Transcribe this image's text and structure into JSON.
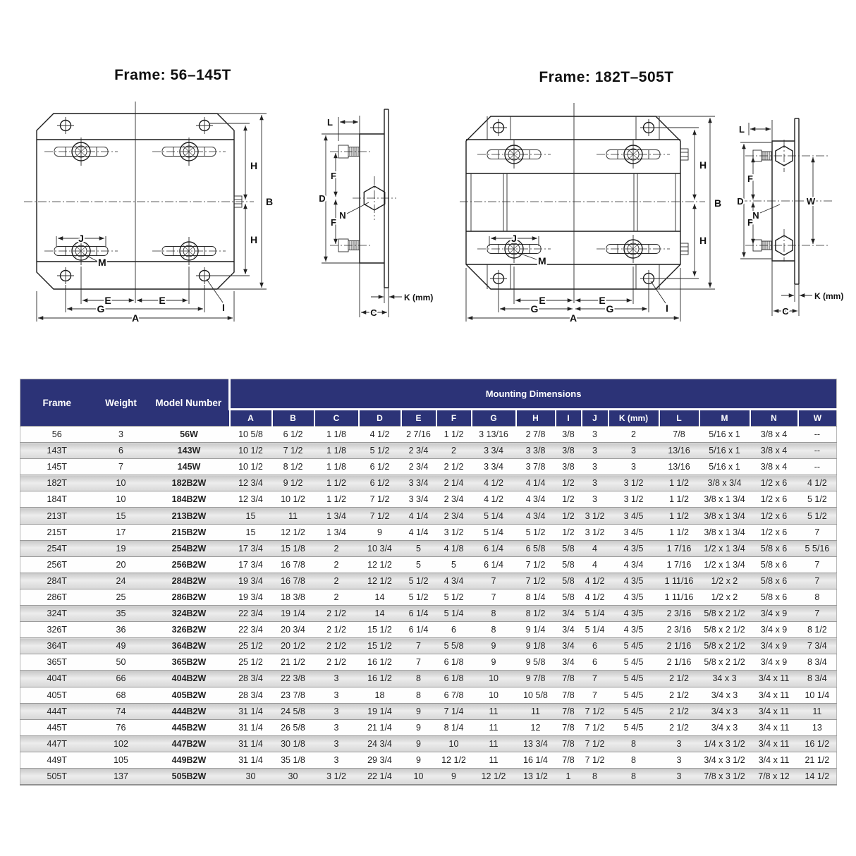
{
  "left_diagram": {
    "title": "Frame: 56–145T",
    "labels": {
      "h_top": "H",
      "b": "B",
      "h_bottom": "H",
      "j": "J",
      "m": "M",
      "e_left": "E",
      "e_right": "E",
      "g": "G",
      "a": "A",
      "i": "I"
    }
  },
  "left_side": {
    "labels": {
      "l": "L",
      "f_top": "F",
      "d": "D",
      "n": "N",
      "f_bottom": "F",
      "k": "K (mm)",
      "c": "C"
    }
  },
  "right_diagram": {
    "title": "Frame: 182T–505T",
    "labels": {
      "h_top": "H",
      "b": "B",
      "h_bottom": "H",
      "j": "J",
      "m": "M",
      "e_left": "E",
      "e_right": "E",
      "g_left": "G",
      "g_right": "G",
      "a": "A",
      "i": "I"
    }
  },
  "right_side": {
    "labels": {
      "l": "L",
      "f_top": "F",
      "d": "D",
      "n": "N",
      "f_bottom": "F",
      "w": "W",
      "k": "K (mm)",
      "c": "C"
    }
  },
  "table": {
    "group_header": "Mounting Dimensions",
    "fixed_headers": [
      "Frame",
      "Weight",
      "Model Number"
    ],
    "dim_headers": [
      "A",
      "B",
      "C",
      "D",
      "E",
      "F",
      "G",
      "H",
      "I",
      "J",
      "K (mm)",
      "L",
      "M",
      "N",
      "W"
    ],
    "rows": [
      [
        "56",
        "3",
        "56W",
        "10 5/8",
        "6 1/2",
        "1 1/8",
        "4 1/2",
        "2 7/16",
        "1 1/2",
        "3 13/16",
        "2 7/8",
        "3/8",
        "3",
        "2",
        "7/8",
        "5/16 x 1",
        "3/8 x 4",
        "--"
      ],
      [
        "143T",
        "6",
        "143W",
        "10 1/2",
        "7 1/2",
        "1 1/8",
        "5 1/2",
        "2 3/4",
        "2",
        "3 3/4",
        "3 3/8",
        "3/8",
        "3",
        "3",
        "13/16",
        "5/16 x 1",
        "3/8 x 4",
        "--"
      ],
      [
        "145T",
        "7",
        "145W",
        "10 1/2",
        "8 1/2",
        "1 1/8",
        "6 1/2",
        "2 3/4",
        "2 1/2",
        "3 3/4",
        "3 7/8",
        "3/8",
        "3",
        "3",
        "13/16",
        "5/16 x 1",
        "3/8 x 4",
        "--"
      ],
      [
        "182T",
        "10",
        "182B2W",
        "12 3/4",
        "9 1/2",
        "1 1/2",
        "6 1/2",
        "3 3/4",
        "2 1/4",
        "4 1/2",
        "4 1/4",
        "1/2",
        "3",
        "3 1/2",
        "1 1/2",
        "3/8 x 3/4",
        "1/2 x 6",
        "4 1/2"
      ],
      [
        "184T",
        "10",
        "184B2W",
        "12 3/4",
        "10 1/2",
        "1 1/2",
        "7 1/2",
        "3 3/4",
        "2 3/4",
        "4 1/2",
        "4 3/4",
        "1/2",
        "3",
        "3 1/2",
        "1 1/2",
        "3/8 x 1 3/4",
        "1/2 x 6",
        "5 1/2"
      ],
      [
        "213T",
        "15",
        "213B2W",
        "15",
        "11",
        "1 3/4",
        "7 1/2",
        "4 1/4",
        "2 3/4",
        "5 1/4",
        "4 3/4",
        "1/2",
        "3 1/2",
        "3 4/5",
        "1 1/2",
        "3/8 x 1 3/4",
        "1/2 x 6",
        "5 1/2"
      ],
      [
        "215T",
        "17",
        "215B2W",
        "15",
        "12 1/2",
        "1 3/4",
        "9",
        "4 1/4",
        "3 1/2",
        "5 1/4",
        "5 1/2",
        "1/2",
        "3 1/2",
        "3 4/5",
        "1 1/2",
        "3/8 x 1 3/4",
        "1/2 x 6",
        "7"
      ],
      [
        "254T",
        "19",
        "254B2W",
        "17 3/4",
        "15 1/8",
        "2",
        "10 3/4",
        "5",
        "4 1/8",
        "6 1/4",
        "6 5/8",
        "5/8",
        "4",
        "4 3/5",
        "1 7/16",
        "1/2 x 1 3/4",
        "5/8 x 6",
        "5 5/16"
      ],
      [
        "256T",
        "20",
        "256B2W",
        "17 3/4",
        "16 7/8",
        "2",
        "12 1/2",
        "5",
        "5",
        "6 1/4",
        "7 1/2",
        "5/8",
        "4",
        "4 3/4",
        "1 7/16",
        "1/2 x 1 3/4",
        "5/8 x 6",
        "7"
      ],
      [
        "284T",
        "24",
        "284B2W",
        "19 3/4",
        "16 7/8",
        "2",
        "12 1/2",
        "5 1/2",
        "4 3/4",
        "7",
        "7 1/2",
        "5/8",
        "4 1/2",
        "4 3/5",
        "1 11/16",
        "1/2 x 2",
        "5/8 x 6",
        "7"
      ],
      [
        "286T",
        "25",
        "286B2W",
        "19 3/4",
        "18 3/8",
        "2",
        "14",
        "5 1/2",
        "5 1/2",
        "7",
        "8 1/4",
        "5/8",
        "4 1/2",
        "4 3/5",
        "1 11/16",
        "1/2 x 2",
        "5/8 x 6",
        "8"
      ],
      [
        "324T",
        "35",
        "324B2W",
        "22 3/4",
        "19 1/4",
        "2 1/2",
        "14",
        "6 1/4",
        "5 1/4",
        "8",
        "8 1/2",
        "3/4",
        "5 1/4",
        "4 3/5",
        "2 3/16",
        "5/8 x 2 1/2",
        "3/4 x 9",
        "7"
      ],
      [
        "326T",
        "36",
        "326B2W",
        "22 3/4",
        "20 3/4",
        "2 1/2",
        "15 1/2",
        "6 1/4",
        "6",
        "8",
        "9 1/4",
        "3/4",
        "5 1/4",
        "4 3/5",
        "2 3/16",
        "5/8 x 2 1/2",
        "3/4 x 9",
        "8 1/2"
      ],
      [
        "364T",
        "49",
        "364B2W",
        "25 1/2",
        "20 1/2",
        "2 1/2",
        "15 1/2",
        "7",
        "5 5/8",
        "9",
        "9 1/8",
        "3/4",
        "6",
        "5 4/5",
        "2 1/16",
        "5/8 x 2 1/2",
        "3/4 x 9",
        "7 3/4"
      ],
      [
        "365T",
        "50",
        "365B2W",
        "25 1/2",
        "21 1/2",
        "2 1/2",
        "16 1/2",
        "7",
        "6 1/8",
        "9",
        "9 5/8",
        "3/4",
        "6",
        "5 4/5",
        "2 1/16",
        "5/8 x 2 1/2",
        "3/4 x 9",
        "8 3/4"
      ],
      [
        "404T",
        "66",
        "404B2W",
        "28 3/4",
        "22 3/8",
        "3",
        "16 1/2",
        "8",
        "6 1/8",
        "10",
        "9 7/8",
        "7/8",
        "7",
        "5 4/5",
        "2 1/2",
        "34 x 3",
        "3/4 x 11",
        "8 3/4"
      ],
      [
        "405T",
        "68",
        "405B2W",
        "28 3/4",
        "23 7/8",
        "3",
        "18",
        "8",
        "6 7/8",
        "10",
        "10 5/8",
        "7/8",
        "7",
        "5 4/5",
        "2 1/2",
        "3/4 x 3",
        "3/4 x 11",
        "10 1/4"
      ],
      [
        "444T",
        "74",
        "444B2W",
        "31 1/4",
        "24 5/8",
        "3",
        "19 1/4",
        "9",
        "7 1/4",
        "11",
        "11",
        "7/8",
        "7 1/2",
        "5 4/5",
        "2 1/2",
        "3/4 x 3",
        "3/4 x 11",
        "11"
      ],
      [
        "445T",
        "76",
        "445B2W",
        "31 1/4",
        "26 5/8",
        "3",
        "21 1/4",
        "9",
        "8 1/4",
        "11",
        "12",
        "7/8",
        "7 1/2",
        "5 4/5",
        "2 1/2",
        "3/4 x 3",
        "3/4 x 11",
        "13"
      ],
      [
        "447T",
        "102",
        "447B2W",
        "31 1/4",
        "30 1/8",
        "3",
        "24 3/4",
        "9",
        "10",
        "11",
        "13 3/4",
        "7/8",
        "7 1/2",
        "8",
        "3",
        "1/4 x 3 1/2",
        "3/4 x 11",
        "16 1/2"
      ],
      [
        "449T",
        "105",
        "449B2W",
        "31 1/4",
        "35 1/8",
        "3",
        "29 3/4",
        "9",
        "12 1/2",
        "11",
        "16 1/4",
        "7/8",
        "7 1/2",
        "8",
        "3",
        "3/4 x 3 1/2",
        "3/4 x 11",
        "21 1/2"
      ],
      [
        "505T",
        "137",
        "505B2W",
        "30",
        "30",
        "3 1/2",
        "22 1/4",
        "10",
        "9",
        "12 1/2",
        "13 1/2",
        "1",
        "8",
        "8",
        "3",
        "7/8 x 3 1/2",
        "7/8 x 12",
        "14 1/2"
      ]
    ]
  }
}
